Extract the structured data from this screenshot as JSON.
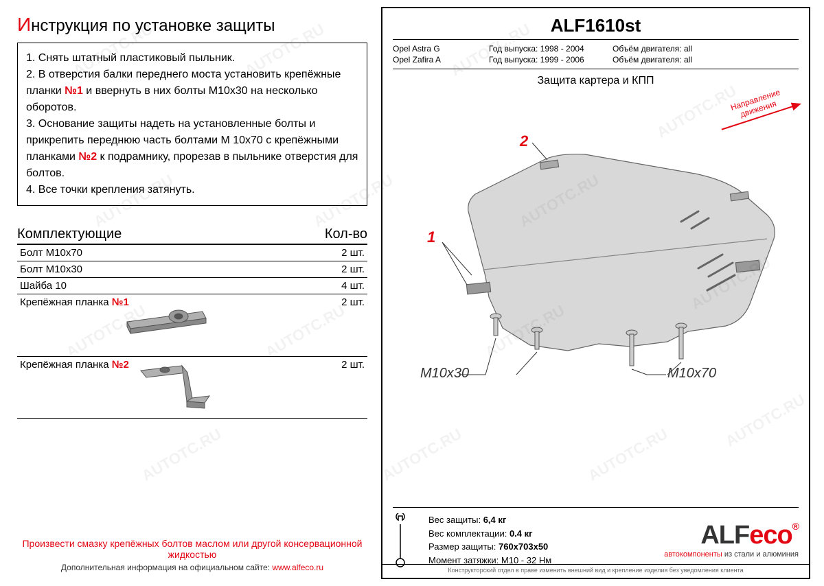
{
  "colors": {
    "red": "#e30613",
    "black": "#000000",
    "gray_text": "#333333",
    "watermark": "rgba(0,0,0,0.05)",
    "bracket_fill": "#b0b0b0",
    "plate_fill": "#d8d8d8",
    "plate_stroke": "#666666"
  },
  "left": {
    "title_cap": "И",
    "title_rest": "нструкция по установке защиты",
    "instructions_html": "1. Снять штатный пластиковый пыльник.<br>2. В отверстия балки переднего моста установить крепёжные планки <span class='red-num'>№1</span> и ввернуть в них болты М10х30 на несколько оборотов.<br>3. Основание защиты надеть на установленные болты и прикрепить переднюю часть болтами М 10х70 с крепёжными планками <span class='red-num'>№2</span> к подрамнику, прорезав в пыльнике отверстия для болтов.<br>4. Все точки крепления затянуть.",
    "parts_header_left": "Комплектующие",
    "parts_header_right": "Кол-во",
    "parts": [
      {
        "name": "Болт М10х70",
        "qty": "2 шт."
      },
      {
        "name": "Болт М10х30",
        "qty": "2 шт."
      },
      {
        "name": "Шайба 10",
        "qty": "4 шт."
      }
    ],
    "bracket1_name": "Крепёжная планка ",
    "bracket1_num": "№1",
    "bracket1_qty": "2 шт.",
    "bracket2_name": "Крепёжная планка ",
    "bracket2_num": "№2",
    "bracket2_qty": "2 шт.",
    "footer_note": "Произвести смазку крепёжных болтов маслом или другой консервационной жидкостью",
    "footer_sub_pre": "Дополнительная информация на официальном сайте: ",
    "footer_link": "www.alfeco.ru"
  },
  "right": {
    "product_code": "ALF1610st",
    "apps": [
      {
        "model": "Opel Astra G",
        "years": "Год выпуска: 1998 - 2004",
        "engine": "Объём двигателя: all"
      },
      {
        "model": "Opel Zafira A",
        "years": "Год выпуска: 1999 - 2006",
        "engine": "Объём двигателя: all"
      }
    ],
    "diagram_title": "Защита картера и КПП",
    "direction_l1": "Направление",
    "direction_l2": "движения",
    "callouts": {
      "c1": "1",
      "c2": "2"
    },
    "bolt_labels": {
      "m30": "M10x30",
      "m70": "M10x70"
    },
    "specs": {
      "weight_label": "Вес защиты:",
      "weight_val": "6,4 кг",
      "kit_label": "Вес комплектации:",
      "kit_val": "0.4 кг",
      "size_label": "Размер защиты:",
      "size_val": "760x703x50",
      "torque_label": "Момент затяжки:",
      "torque_val": "М10 - 32 Нм"
    },
    "logo": {
      "alf": "ALF",
      "eco": "eco",
      "reg": "®",
      "sub_red": "автокомпоненты",
      "sub_rest": " из стали и алюминия"
    },
    "disclaimer": "Конструкторский отдел в праве изменить внешний вид и крепление изделия без уведомления клиента"
  },
  "watermark_text": "AUTOTC.RU"
}
